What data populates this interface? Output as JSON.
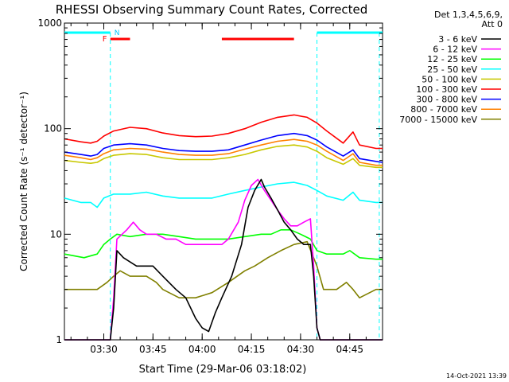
{
  "chart_data": {
    "type": "line",
    "title": "RHESSI Observing Summary Count Rates, Corrected",
    "xlabel": "Start Time (29-Mar-06 03:18:02)",
    "ylabel": "Corrected Count Rate (s⁻¹ detector⁻¹)",
    "yscale": "log",
    "ylim": [
      1,
      1000
    ],
    "xlim_minutes_after_0318": [
      0,
      97
    ],
    "x_ticks": [
      {
        "label": "03:30",
        "min": 12
      },
      {
        "label": "03:45",
        "min": 27
      },
      {
        "label": "04:00",
        "min": 42
      },
      {
        "label": "04:15",
        "min": 57
      },
      {
        "label": "04:30",
        "min": 72
      },
      {
        "label": "04:45",
        "min": 87
      }
    ],
    "y_ticks": [
      {
        "label": "1",
        "value": 1
      },
      {
        "label": "10",
        "value": 10
      },
      {
        "label": "100",
        "value": 100
      },
      {
        "label": "1000",
        "value": 1000
      }
    ],
    "legend": {
      "placement": "right",
      "header": [
        "Det 1,3,4,5,6,9,",
        "Att 0"
      ]
    },
    "series": [
      {
        "name": "3 - 6 keV",
        "color": "#000000",
        "points": [
          [
            0,
            1
          ],
          [
            14,
            1
          ],
          [
            15,
            2
          ],
          [
            16,
            7
          ],
          [
            18,
            6
          ],
          [
            22,
            5
          ],
          [
            27,
            5
          ],
          [
            30,
            4
          ],
          [
            34,
            3
          ],
          [
            37,
            2.5
          ],
          [
            40,
            1.6
          ],
          [
            42,
            1.3
          ],
          [
            44,
            1.2
          ],
          [
            46,
            1.8
          ],
          [
            48,
            2.5
          ],
          [
            51,
            4
          ],
          [
            54,
            8
          ],
          [
            56,
            18
          ],
          [
            58,
            26
          ],
          [
            60,
            33
          ],
          [
            61,
            28
          ],
          [
            63,
            22
          ],
          [
            65,
            17
          ],
          [
            67,
            13
          ],
          [
            69,
            11
          ],
          [
            71,
            9
          ],
          [
            73,
            8
          ],
          [
            75,
            8
          ],
          [
            76,
            4
          ],
          [
            77,
            1.3
          ],
          [
            78,
            1
          ],
          [
            97,
            1
          ]
        ]
      },
      {
        "name": "6 - 12 keV",
        "color": "#ff00ff",
        "points": [
          [
            0,
            1
          ],
          [
            14,
            1
          ],
          [
            15,
            2.5
          ],
          [
            16,
            9
          ],
          [
            19,
            11
          ],
          [
            21,
            13
          ],
          [
            23,
            11
          ],
          [
            25,
            10
          ],
          [
            28,
            10
          ],
          [
            31,
            9
          ],
          [
            34,
            9
          ],
          [
            37,
            8
          ],
          [
            40,
            8
          ],
          [
            43,
            8
          ],
          [
            46,
            8
          ],
          [
            48,
            8
          ],
          [
            50,
            9
          ],
          [
            53,
            13
          ],
          [
            55,
            21
          ],
          [
            57,
            29
          ],
          [
            59,
            33
          ],
          [
            61,
            26
          ],
          [
            63,
            21
          ],
          [
            65,
            17
          ],
          [
            67,
            14
          ],
          [
            69,
            12
          ],
          [
            71,
            12
          ],
          [
            73,
            13
          ],
          [
            75,
            14
          ],
          [
            76,
            5
          ],
          [
            77,
            1.3
          ],
          [
            78,
            1
          ],
          [
            97,
            1
          ]
        ]
      },
      {
        "name": "12 - 25 keV",
        "color": "#00ff00",
        "points": [
          [
            0,
            6.5
          ],
          [
            6,
            6
          ],
          [
            10,
            6.5
          ],
          [
            12,
            8
          ],
          [
            14,
            9
          ],
          [
            16,
            10
          ],
          [
            20,
            9.5
          ],
          [
            25,
            10
          ],
          [
            30,
            10
          ],
          [
            35,
            9.5
          ],
          [
            40,
            9
          ],
          [
            45,
            9
          ],
          [
            50,
            9
          ],
          [
            55,
            9.5
          ],
          [
            60,
            10
          ],
          [
            63,
            10
          ],
          [
            66,
            11
          ],
          [
            69,
            11
          ],
          [
            72,
            10
          ],
          [
            75,
            9
          ],
          [
            77,
            7
          ],
          [
            80,
            6.5
          ],
          [
            85,
            6.5
          ],
          [
            87,
            7
          ],
          [
            90,
            6
          ],
          [
            95,
            5.8
          ],
          [
            97,
            5.8
          ]
        ]
      },
      {
        "name": "25 - 50 keV",
        "color": "#00ffff",
        "points": [
          [
            0,
            22
          ],
          [
            5,
            20
          ],
          [
            8,
            20
          ],
          [
            10,
            18
          ],
          [
            12,
            22
          ],
          [
            15,
            24
          ],
          [
            20,
            24
          ],
          [
            25,
            25
          ],
          [
            30,
            23
          ],
          [
            35,
            22
          ],
          [
            40,
            22
          ],
          [
            45,
            22
          ],
          [
            50,
            24
          ],
          [
            55,
            26
          ],
          [
            60,
            28
          ],
          [
            65,
            30
          ],
          [
            70,
            31
          ],
          [
            74,
            29
          ],
          [
            77,
            26
          ],
          [
            80,
            23
          ],
          [
            85,
            21
          ],
          [
            88,
            25
          ],
          [
            90,
            21
          ],
          [
            95,
            20
          ],
          [
            97,
            20
          ]
        ]
      },
      {
        "name": "50 - 100 keV",
        "color": "#c8c800",
        "points": [
          [
            0,
            50
          ],
          [
            5,
            48
          ],
          [
            8,
            47
          ],
          [
            10,
            48
          ],
          [
            12,
            52
          ],
          [
            15,
            56
          ],
          [
            20,
            58
          ],
          [
            25,
            57
          ],
          [
            30,
            53
          ],
          [
            35,
            51
          ],
          [
            40,
            51
          ],
          [
            45,
            51
          ],
          [
            50,
            53
          ],
          [
            55,
            57
          ],
          [
            60,
            63
          ],
          [
            65,
            68
          ],
          [
            70,
            70
          ],
          [
            74,
            67
          ],
          [
            77,
            61
          ],
          [
            80,
            53
          ],
          [
            85,
            46
          ],
          [
            88,
            52
          ],
          [
            90,
            45
          ],
          [
            95,
            43
          ],
          [
            97,
            43
          ]
        ]
      },
      {
        "name": "100 - 300 keV",
        "color": "#ff0000",
        "points": [
          [
            0,
            80
          ],
          [
            5,
            75
          ],
          [
            8,
            73
          ],
          [
            10,
            76
          ],
          [
            12,
            85
          ],
          [
            15,
            95
          ],
          [
            20,
            103
          ],
          [
            25,
            100
          ],
          [
            30,
            91
          ],
          [
            35,
            86
          ],
          [
            40,
            84
          ],
          [
            45,
            85
          ],
          [
            50,
            90
          ],
          [
            55,
            100
          ],
          [
            60,
            115
          ],
          [
            65,
            128
          ],
          [
            70,
            135
          ],
          [
            74,
            128
          ],
          [
            77,
            113
          ],
          [
            80,
            95
          ],
          [
            85,
            73
          ],
          [
            88,
            93
          ],
          [
            90,
            70
          ],
          [
            95,
            65
          ],
          [
            97,
            65
          ]
        ]
      },
      {
        "name": "300 - 800 keV",
        "color": "#0000ff",
        "points": [
          [
            0,
            60
          ],
          [
            5,
            57
          ],
          [
            8,
            55
          ],
          [
            10,
            57
          ],
          [
            12,
            65
          ],
          [
            15,
            70
          ],
          [
            20,
            72
          ],
          [
            25,
            70
          ],
          [
            30,
            65
          ],
          [
            35,
            62
          ],
          [
            40,
            61
          ],
          [
            45,
            61
          ],
          [
            50,
            63
          ],
          [
            55,
            70
          ],
          [
            60,
            78
          ],
          [
            65,
            86
          ],
          [
            70,
            90
          ],
          [
            74,
            86
          ],
          [
            77,
            78
          ],
          [
            80,
            67
          ],
          [
            85,
            55
          ],
          [
            88,
            63
          ],
          [
            90,
            52
          ],
          [
            95,
            49
          ],
          [
            97,
            48
          ]
        ]
      },
      {
        "name": "800 - 7000 keV",
        "color": "#ff8000",
        "points": [
          [
            0,
            56
          ],
          [
            5,
            53
          ],
          [
            8,
            51
          ],
          [
            10,
            53
          ],
          [
            12,
            58
          ],
          [
            15,
            63
          ],
          [
            20,
            65
          ],
          [
            25,
            64
          ],
          [
            30,
            60
          ],
          [
            35,
            57
          ],
          [
            40,
            56
          ],
          [
            45,
            56
          ],
          [
            50,
            58
          ],
          [
            55,
            64
          ],
          [
            60,
            70
          ],
          [
            65,
            76
          ],
          [
            70,
            79
          ],
          [
            74,
            76
          ],
          [
            77,
            70
          ],
          [
            80,
            61
          ],
          [
            85,
            50
          ],
          [
            88,
            58
          ],
          [
            90,
            48
          ],
          [
            95,
            45
          ],
          [
            97,
            45
          ]
        ]
      },
      {
        "name": "7000 - 15000 keV",
        "color": "#808000",
        "points": [
          [
            0,
            3
          ],
          [
            5,
            3
          ],
          [
            10,
            3
          ],
          [
            13,
            3.5
          ],
          [
            15,
            4
          ],
          [
            17,
            4.5
          ],
          [
            20,
            4
          ],
          [
            25,
            4
          ],
          [
            28,
            3.5
          ],
          [
            30,
            3
          ],
          [
            35,
            2.5
          ],
          [
            40,
            2.5
          ],
          [
            45,
            2.8
          ],
          [
            50,
            3.5
          ],
          [
            55,
            4.5
          ],
          [
            58,
            5
          ],
          [
            62,
            6
          ],
          [
            66,
            7
          ],
          [
            70,
            8
          ],
          [
            74,
            8.5
          ],
          [
            77,
            5
          ],
          [
            79,
            3
          ],
          [
            83,
            3
          ],
          [
            86,
            3.5
          ],
          [
            88,
            3
          ],
          [
            90,
            2.5
          ],
          [
            95,
            3
          ],
          [
            97,
            3
          ]
        ]
      }
    ],
    "attenuator_bars": [
      {
        "color": "#00ffff",
        "label": "N",
        "start_min": 0,
        "end_min": 14
      },
      {
        "color": "#00ffff",
        "label": "",
        "start_min": 77,
        "end_min": 97
      }
    ],
    "flare_bars": [
      {
        "color": "#ff0000",
        "label": "F",
        "start_min": 14,
        "end_min": 20
      },
      {
        "color": "#ff0000",
        "label": "",
        "start_min": 48,
        "end_min": 70
      }
    ],
    "night_markers_min": [
      14,
      77,
      96
    ],
    "footer_timestamp": "14-Oct-2021 13:39"
  }
}
